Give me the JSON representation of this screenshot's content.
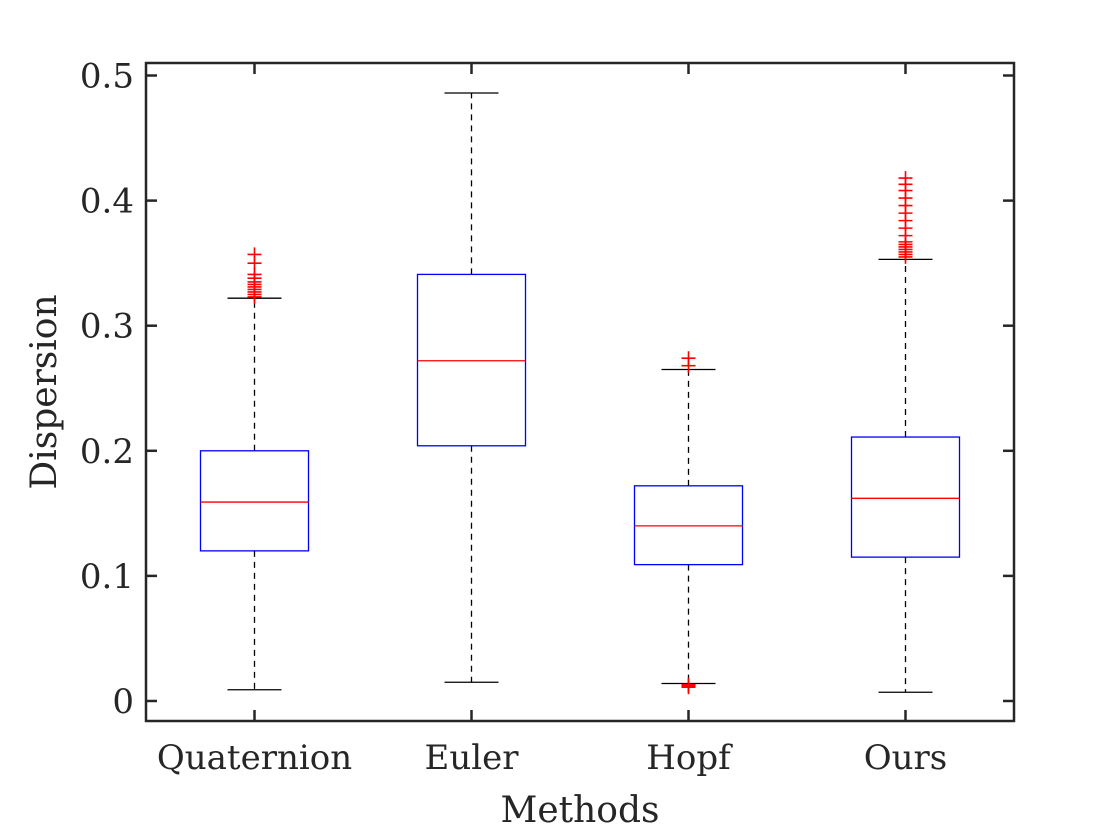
{
  "chart_data": {
    "type": "box",
    "xlabel": "Methods",
    "ylabel": "Dispersion",
    "ylim": [
      -0.016,
      0.51
    ],
    "yticks": [
      "0",
      "0.1",
      "0.2",
      "0.3",
      "0.4",
      "0.5"
    ],
    "ytick_values": [
      0,
      0.1,
      0.2,
      0.3,
      0.4,
      0.5
    ],
    "grid": false,
    "colors": {
      "box": "#0000ff",
      "median": "#ff0000",
      "whisker": "#000000",
      "outlier": "#ff0000",
      "axis": "#262626"
    },
    "categories": [
      "Quaternion",
      "Euler",
      "Hopf",
      "Ours"
    ],
    "boxes": [
      {
        "category": "Quaternion",
        "whisker_low": 0.009,
        "q1": 0.12,
        "median": 0.159,
        "q3": 0.2,
        "whisker_high": 0.322,
        "outliers": [
          0.323,
          0.325,
          0.327,
          0.329,
          0.331,
          0.333,
          0.335,
          0.338,
          0.341,
          0.35,
          0.357
        ]
      },
      {
        "category": "Euler",
        "whisker_low": 0.015,
        "q1": 0.204,
        "median": 0.272,
        "q3": 0.341,
        "whisker_high": 0.486,
        "outliers": []
      },
      {
        "category": "Hopf",
        "whisker_low": 0.014,
        "q1": 0.109,
        "median": 0.14,
        "q3": 0.172,
        "whisker_high": 0.265,
        "outliers": [
          0.011,
          0.012,
          0.013,
          0.268,
          0.274
        ]
      },
      {
        "category": "Ours",
        "whisker_low": 0.007,
        "q1": 0.115,
        "median": 0.162,
        "q3": 0.211,
        "whisker_high": 0.353,
        "outliers": [
          0.355,
          0.357,
          0.359,
          0.361,
          0.363,
          0.365,
          0.367,
          0.372,
          0.378,
          0.384,
          0.39,
          0.396,
          0.402,
          0.408,
          0.413,
          0.418
        ]
      }
    ]
  }
}
